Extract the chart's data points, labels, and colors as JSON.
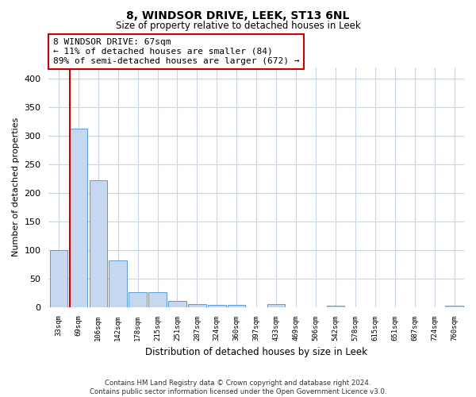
{
  "title": "8, WINDSOR DRIVE, LEEK, ST13 6NL",
  "subtitle": "Size of property relative to detached houses in Leek",
  "xlabel": "Distribution of detached houses by size in Leek",
  "ylabel": "Number of detached properties",
  "footer_line1": "Contains HM Land Registry data © Crown copyright and database right 2024.",
  "footer_line2": "Contains public sector information licensed under the Open Government Licence v3.0.",
  "categories": [
    "33sqm",
    "69sqm",
    "106sqm",
    "142sqm",
    "178sqm",
    "215sqm",
    "251sqm",
    "287sqm",
    "324sqm",
    "360sqm",
    "397sqm",
    "433sqm",
    "469sqm",
    "506sqm",
    "542sqm",
    "578sqm",
    "615sqm",
    "651sqm",
    "687sqm",
    "724sqm",
    "760sqm"
  ],
  "values": [
    99,
    312,
    222,
    82,
    26,
    26,
    11,
    5,
    4,
    4,
    0,
    5,
    0,
    0,
    3,
    0,
    0,
    0,
    0,
    0,
    3
  ],
  "bar_color": "#c5d8f0",
  "bar_edge_color": "#5b9bd5",
  "marker_line_color": "#cc0000",
  "annotation_text": "8 WINDSOR DRIVE: 67sqm\n← 11% of detached houses are smaller (84)\n89% of semi-detached houses are larger (672) →",
  "annotation_box_color": "#ffffff",
  "annotation_box_edge_color": "#cc0000",
  "ylim": [
    0,
    420
  ],
  "yticks": [
    0,
    50,
    100,
    150,
    200,
    250,
    300,
    350,
    400
  ],
  "background_color": "#ffffff",
  "grid_color": "#c8d4e8"
}
